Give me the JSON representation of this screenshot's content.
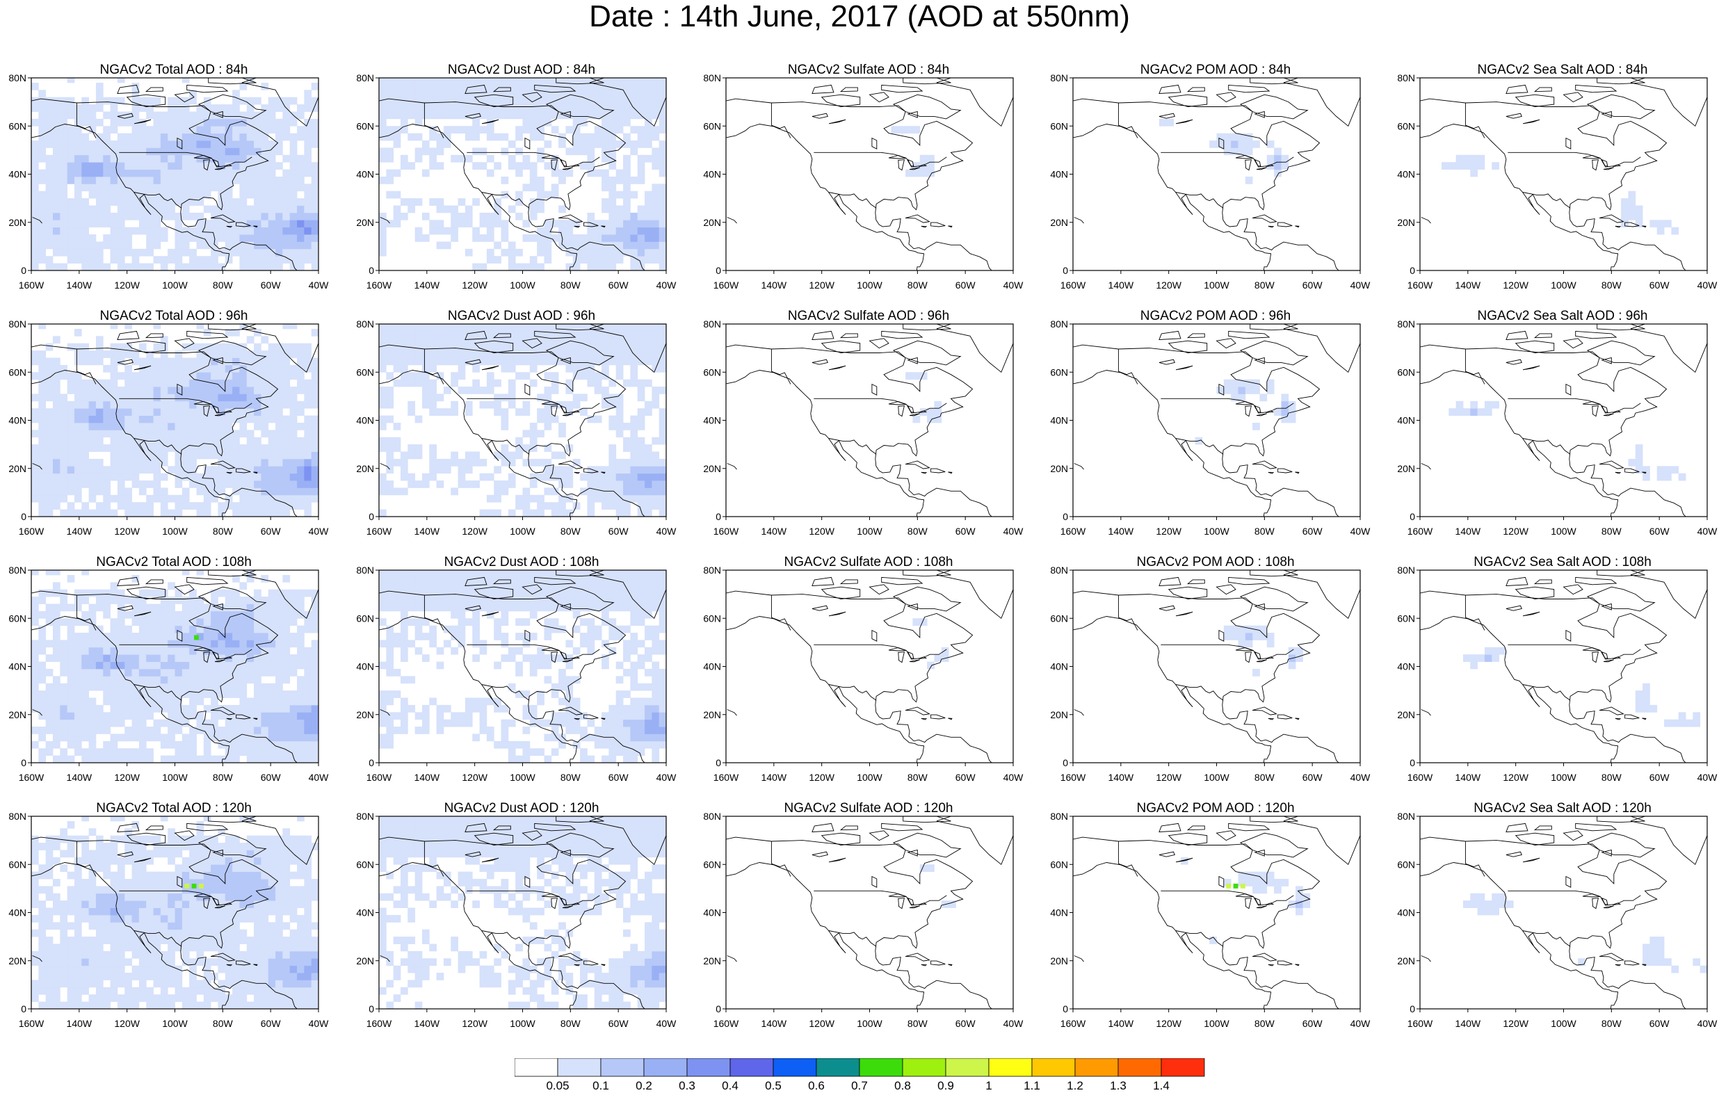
{
  "title": "Date : 14th June, 2017 (AOD at 550nm)",
  "map": {
    "lat_ticks": [
      "80N",
      "60N",
      "40N",
      "20N",
      "0"
    ],
    "lon_ticks": [
      "160W",
      "140W",
      "120W",
      "100W",
      "80W",
      "60W",
      "40W"
    ]
  },
  "rows": [
    {
      "lead": "84h",
      "titles": [
        "NGACv2 Total AOD : 84h",
        "NGACv2 Dust AOD : 84h",
        "NGACv2 Sulfate AOD : 84h",
        "NGACv2 POM AOD : 84h",
        "NGACv2 Sea Salt AOD : 84h"
      ]
    },
    {
      "lead": "96h",
      "titles": [
        "NGACv2 Total AOD : 96h",
        "NGACv2 Dust AOD : 96h",
        "NGACv2 Sulfate AOD : 96h",
        "NGACv2 POM AOD : 96h",
        "NGACv2 Sea Salt AOD : 96h"
      ]
    },
    {
      "lead": "108h",
      "titles": [
        "NGACv2 Total AOD : 108h",
        "NGACv2 Dust AOD : 108h",
        "NGACv2 Sulfate AOD : 108h",
        "NGACv2 POM AOD : 108h",
        "NGACv2 Sea Salt AOD : 108h"
      ]
    },
    {
      "lead": "120h",
      "titles": [
        "NGACv2 Total AOD : 120h",
        "NGACv2 Dust AOD : 120h",
        "NGACv2 Sulfate AOD : 120h",
        "NGACv2 POM AOD : 120h",
        "NGACv2 Sea Salt  AOD : 120h"
      ]
    }
  ],
  "colorbar": {
    "labels": [
      "0.05",
      "0.1",
      "0.2",
      "0.3",
      "0.4",
      "0.5",
      "0.6",
      "0.7",
      "0.8",
      "0.9",
      "1",
      "1.1",
      "1.2",
      "1.3",
      "1.4"
    ],
    "colors": [
      "#ffffff",
      "#d6e1fb",
      "#b6c8f8",
      "#9ab0f5",
      "#7e93f1",
      "#5f66e9",
      "#0d5ff5",
      "#0d8e8e",
      "#3cdc0b",
      "#9ef00f",
      "#cdf54a",
      "#ffff14",
      "#ffc800",
      "#ff9b00",
      "#ff6a00",
      "#ff2e0c"
    ]
  },
  "colors": {
    "level1": "#d6e1fb",
    "level2": "#b6c8f8",
    "level3": "#9ab0f5",
    "level4": "#7e93f1",
    "level5": "#5f66e9",
    "green_hotspot": "#3cdc0b",
    "yellow_hotspot": "#cdf54a"
  }
}
